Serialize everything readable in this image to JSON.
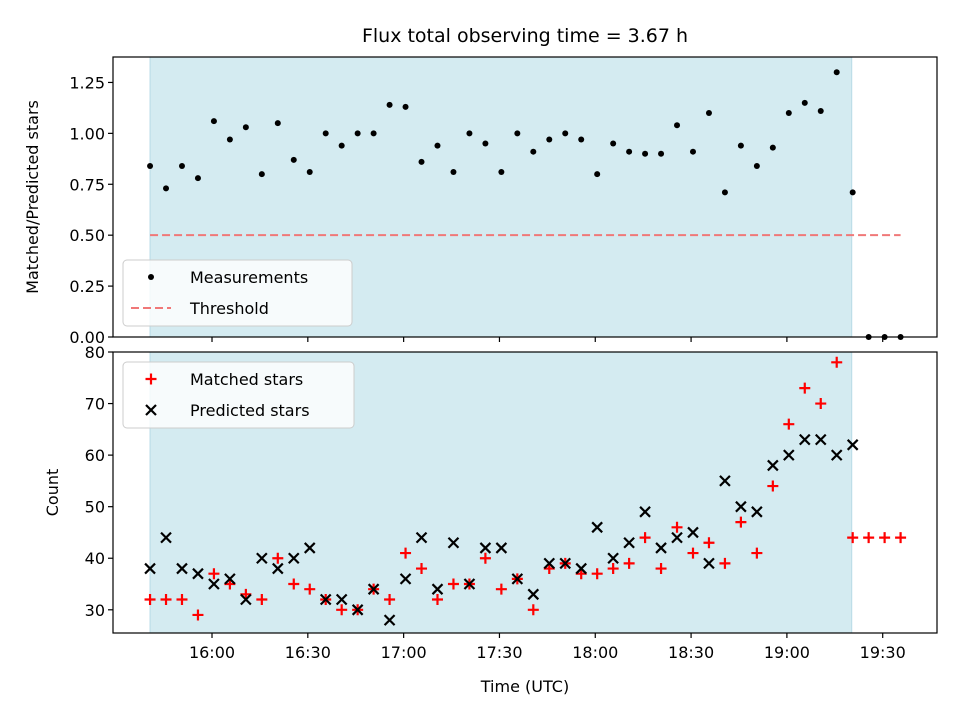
{
  "chart_data": {
    "type": "scatter",
    "title": "Flux total observing time = 3.67 h",
    "xlabel": "Time (UTC)",
    "x_ticks": [
      "16:00",
      "16:30",
      "17:00",
      "17:30",
      "18:00",
      "18:30",
      "19:00",
      "19:30"
    ],
    "x_tick_minutes": [
      960,
      990,
      1020,
      1050,
      1080,
      1110,
      1140,
      1170
    ],
    "xlim_minutes": [
      929,
      1187
    ],
    "shaded_interval_minutes": [
      940.6,
      1160.3
    ],
    "x_minutes": [
      940.6,
      945.6,
      950.6,
      955.6,
      960.6,
      965.6,
      970.6,
      975.6,
      980.6,
      985.6,
      990.6,
      995.6,
      1000.6,
      1005.6,
      1010.6,
      1015.6,
      1020.6,
      1025.6,
      1030.6,
      1035.6,
      1040.6,
      1045.6,
      1050.6,
      1055.6,
      1060.6,
      1065.6,
      1070.6,
      1075.6,
      1080.6,
      1085.6,
      1090.6,
      1095.6,
      1100.6,
      1105.6,
      1110.6,
      1115.6,
      1120.6,
      1125.6,
      1130.6,
      1135.6,
      1140.6,
      1145.6,
      1150.6,
      1155.6,
      1160.6,
      1165.6,
      1170.6,
      1175.6
    ],
    "panels": [
      {
        "ylabel": "Matched/Predicted stars",
        "ylim": [
          0,
          1.375
        ],
        "y_ticks": [
          "0.00",
          "0.25",
          "0.50",
          "0.75",
          "1.00",
          "1.25"
        ],
        "y_tick_values": [
          0,
          0.25,
          0.5,
          0.75,
          1.0,
          1.25
        ],
        "legend_position": "lower-left",
        "threshold": 0.5,
        "threshold_x_range_minutes": [
          940.6,
          1175.6
        ],
        "series": [
          {
            "name": "Measurements",
            "marker": "dot",
            "color": "#000000",
            "values": [
              0.84,
              0.73,
              0.84,
              0.78,
              1.06,
              0.97,
              1.03,
              0.8,
              1.05,
              0.87,
              0.81,
              1.0,
              0.94,
              1.0,
              1.0,
              1.14,
              1.13,
              0.86,
              0.94,
              0.81,
              1.0,
              0.95,
              0.81,
              1.0,
              0.91,
              0.97,
              1.0,
              0.97,
              0.8,
              0.95,
              0.91,
              0.9,
              0.9,
              1.04,
              0.91,
              1.1,
              0.71,
              0.94,
              0.84,
              0.93,
              1.1,
              1.15,
              1.11,
              1.3,
              0.71,
              0.0,
              0.0,
              0.0
            ]
          },
          {
            "name": "Threshold",
            "marker": "dashed-line",
            "color": "#f07878"
          }
        ]
      },
      {
        "ylabel": "Count",
        "ylim": [
          25.5,
          80
        ],
        "y_ticks": [
          "30",
          "40",
          "50",
          "60",
          "70",
          "80"
        ],
        "y_tick_values": [
          30,
          40,
          50,
          60,
          70,
          80
        ],
        "legend_position": "upper-left",
        "series": [
          {
            "name": "Matched stars",
            "marker": "plus",
            "color": "#ff0000",
            "values": [
              32,
              32,
              32,
              29,
              37,
              35,
              33,
              32,
              40,
              35,
              34,
              32,
              30,
              30,
              34,
              32,
              41,
              38,
              32,
              35,
              35,
              40,
              34,
              36,
              30,
              38,
              39,
              37,
              37,
              38,
              39,
              44,
              38,
              46,
              41,
              43,
              39,
              47,
              41,
              54,
              66,
              73,
              70,
              78,
              44,
              44,
              44,
              44
            ]
          },
          {
            "name": "Predicted stars",
            "marker": "x",
            "color": "#000000",
            "values": [
              38,
              44,
              38,
              37,
              35,
              36,
              32,
              40,
              38,
              40,
              42,
              32,
              32,
              30,
              34,
              28,
              36,
              44,
              34,
              43,
              35,
              42,
              42,
              36,
              33,
              39,
              39,
              38,
              46,
              40,
              43,
              49,
              42,
              44,
              45,
              39,
              55,
              50,
              49,
              58,
              60,
              63,
              63,
              60,
              62
            ]
          }
        ]
      }
    ]
  }
}
